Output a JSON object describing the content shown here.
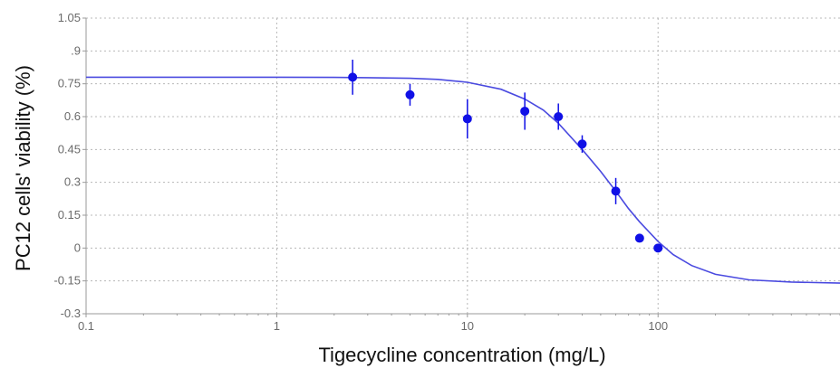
{
  "chart_data": {
    "type": "scatter",
    "title": "",
    "xlabel": "Tigecycline concentration (mg/L)",
    "ylabel": "PC12 cells' viability (%)",
    "x_scale": "log",
    "xlim": [
      0.1,
      900
    ],
    "ylim": [
      -0.3,
      1.05
    ],
    "grid": true,
    "x_ticks": [
      0.1,
      1,
      10,
      100
    ],
    "x_tick_labels": [
      "0.1",
      "1",
      "10",
      "100"
    ],
    "y_ticks": [
      -0.3,
      -0.15,
      0,
      0.15,
      0.3,
      0.45,
      0.6,
      0.75,
      0.9,
      1.05
    ],
    "y_tick_labels": [
      "-0.3",
      "-0.15",
      "0",
      "0.15",
      "0.3",
      "0.45",
      "0.6",
      "0.75",
      ".9",
      "1.05"
    ],
    "series": [
      {
        "kind": "scatter",
        "color": "#1010e6",
        "x": [
          2.5,
          5,
          10,
          20,
          30,
          40,
          60,
          80,
          100
        ],
        "y": [
          0.78,
          0.7,
          0.59,
          0.625,
          0.6,
          0.475,
          0.26,
          0.045,
          0.0
        ],
        "error": [
          0.08,
          0.05,
          0.09,
          0.085,
          0.06,
          0.04,
          0.06,
          0.01,
          0.01
        ]
      },
      {
        "kind": "line",
        "color": "#4a4ae0",
        "x": [
          0.1,
          0.3,
          1,
          2,
          3,
          5,
          7,
          10,
          15,
          20,
          25,
          30,
          40,
          50,
          60,
          70,
          80,
          100,
          120,
          150,
          200,
          300,
          500,
          900
        ],
        "y": [
          0.78,
          0.78,
          0.78,
          0.779,
          0.778,
          0.775,
          0.77,
          0.757,
          0.725,
          0.68,
          0.63,
          0.57,
          0.45,
          0.35,
          0.26,
          0.18,
          0.12,
          0.03,
          -0.03,
          -0.08,
          -0.12,
          -0.145,
          -0.155,
          -0.16
        ]
      }
    ]
  }
}
